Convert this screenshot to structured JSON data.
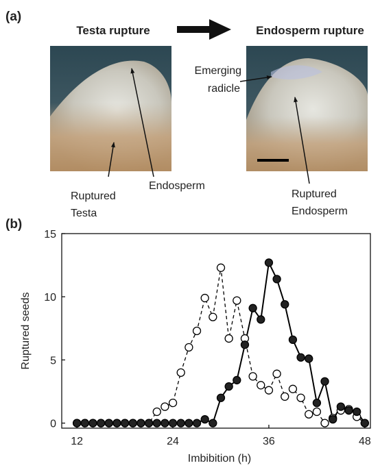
{
  "panel_a": {
    "label": "(a)",
    "stages": [
      "Testa rupture",
      "Endosperm rupture"
    ],
    "annotations": [
      {
        "lines": [
          "Emerging",
          "radicle"
        ]
      },
      {
        "lines": [
          "Endosperm"
        ]
      },
      {
        "lines": [
          "Ruptured",
          "Testa"
        ]
      },
      {
        "lines": [
          "Ruptured",
          "Endosperm"
        ]
      }
    ]
  },
  "chart_data": {
    "type": "line",
    "panel_label": "(b)",
    "x_label": "Imbibition (h)",
    "y_label": "Ruptured seeds",
    "x": [
      12,
      13,
      14,
      15,
      16,
      17,
      18,
      19,
      20,
      21,
      22,
      23,
      24,
      25,
      26,
      27,
      28,
      29,
      30,
      31,
      32,
      33,
      34,
      35,
      36,
      37,
      38,
      39,
      40,
      41,
      42,
      43,
      44,
      45,
      46,
      47,
      48
    ],
    "series": [
      {
        "color": "#000000",
        "marker": "open",
        "dashed": true,
        "values": [
          0,
          0,
          0,
          0,
          0,
          0,
          0,
          0,
          0,
          0,
          0.9,
          1.3,
          1.6,
          4.0,
          6.0,
          7.3,
          9.9,
          8.4,
          12.3,
          6.7,
          9.7,
          6.7,
          3.7,
          3.0,
          2.6,
          3.9,
          2.1,
          2.7,
          2.0,
          0.7,
          0.9,
          0,
          0.4,
          1.0,
          1.1,
          0.5,
          0
        ]
      },
      {
        "color": "#000000",
        "marker": "filled",
        "dashed": false,
        "values": [
          0,
          0,
          0,
          0,
          0,
          0,
          0,
          0,
          0,
          0,
          0,
          0,
          0,
          0,
          0,
          0,
          0.3,
          0,
          2.0,
          2.9,
          3.4,
          6.2,
          9.1,
          8.2,
          12.7,
          11.4,
          9.4,
          6.6,
          5.2,
          5.1,
          1.6,
          3.3,
          0.3,
          1.3,
          1.0,
          0.9,
          0
        ]
      }
    ],
    "xlim": [
      10.1,
      48.7
    ],
    "ylim": [
      -0.4,
      15
    ],
    "xticks": [
      12,
      24,
      36,
      48
    ],
    "yticks": [
      0,
      5,
      10,
      15
    ]
  }
}
